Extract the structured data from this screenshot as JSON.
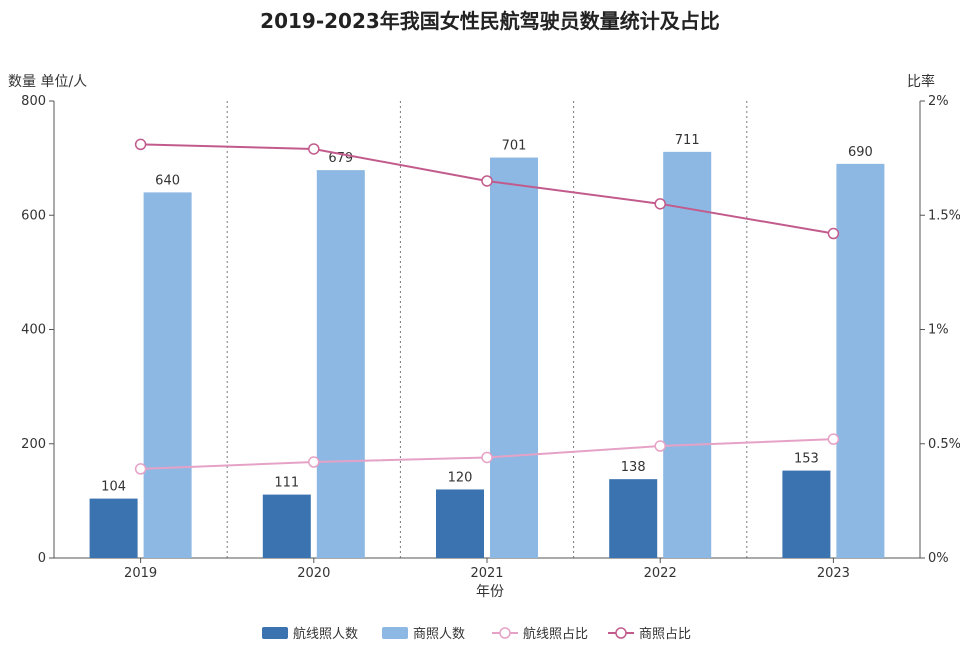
{
  "chart_data": {
    "type": "bar",
    "title": "2019-2023年我国女性民航驾驶员数量统计及占比",
    "xlabel": "年份",
    "ylabel": "数量 单位/人",
    "y2label": "比率",
    "categories": [
      "2019",
      "2020",
      "2021",
      "2022",
      "2023"
    ],
    "ylim": [
      0,
      800
    ],
    "yticks": [
      0,
      200,
      400,
      600,
      800
    ],
    "ytick_labels": [
      "0",
      "200",
      "400",
      "600",
      "800"
    ],
    "y2lim": [
      0,
      2
    ],
    "y2ticks": [
      0,
      0.5,
      1,
      1.5,
      2
    ],
    "y2tick_labels": [
      "0%",
      "0.5%",
      "1%",
      "1.5%",
      "2%"
    ],
    "series": [
      {
        "name": "航线照人数",
        "type": "bar",
        "axis": "left",
        "color": "#3b73b0",
        "values": [
          104,
          111,
          120,
          138,
          153
        ]
      },
      {
        "name": "商照人数",
        "type": "bar",
        "axis": "left",
        "color": "#8cb8e3",
        "values": [
          640,
          679,
          701,
          711,
          690
        ]
      },
      {
        "name": "航线照占比",
        "type": "line",
        "axis": "right",
        "color": "#e6a2c6",
        "values": [
          0.39,
          0.42,
          0.44,
          0.49,
          0.52
        ]
      },
      {
        "name": "商照占比",
        "type": "line",
        "axis": "right",
        "color": "#c25b8c",
        "values": [
          1.81,
          1.79,
          1.65,
          1.55,
          1.42
        ]
      }
    ],
    "grid": "vertical-dotted",
    "legend_position": "bottom"
  }
}
